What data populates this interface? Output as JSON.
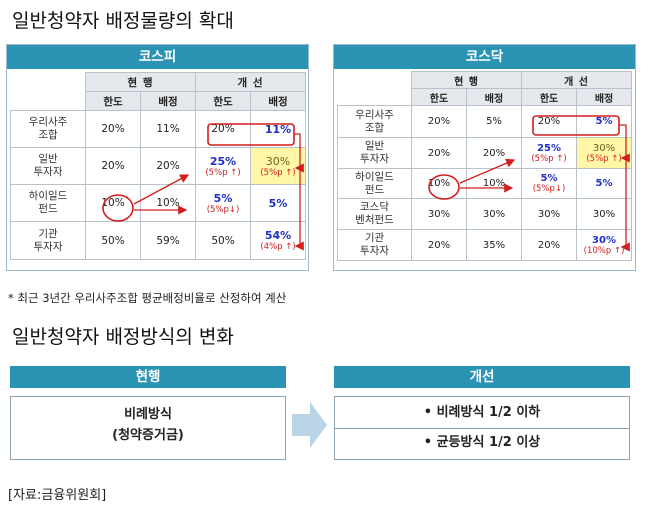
{
  "titles": {
    "expansion": "일반청약자 배정물량의 확대",
    "method": "일반청약자 배정방식의 변화"
  },
  "kospi": {
    "name": "코스피",
    "group_current": "현 행",
    "group_improved": "개 선",
    "col_limit": "한도",
    "col_alloc": "배정",
    "rows": [
      {
        "label_1": "우리사주",
        "label_2": "조합",
        "cur_limit": "20%",
        "cur_alloc": "11%",
        "new_limit": "20%",
        "new_alloc": "11%",
        "new_alloc_note": ""
      },
      {
        "label_1": "일반",
        "label_2": "투자자",
        "cur_limit": "20%",
        "cur_alloc": "20%",
        "new_limit": "25%",
        "new_limit_note": "(5%p ↑)",
        "new_alloc": "30%",
        "new_alloc_note": "(5%p ↑)"
      },
      {
        "label_1": "하이일드",
        "label_2": "펀드",
        "cur_limit": "10%",
        "cur_alloc": "10%",
        "new_limit": "5%",
        "new_limit_note": "(5%p↓)",
        "new_alloc": "5%",
        "new_alloc_note": ""
      },
      {
        "label_1": "기관",
        "label_2": "투자자",
        "cur_limit": "50%",
        "cur_alloc": "59%",
        "new_limit": "50%",
        "new_alloc": "54%",
        "new_alloc_note": "(4%p ↑)"
      }
    ]
  },
  "kosdaq": {
    "name": "코스닥",
    "group_current": "현 행",
    "group_improved": "개 선",
    "col_limit": "한도",
    "col_alloc": "배정",
    "rows": [
      {
        "label_1": "우리사주",
        "label_2": "조합",
        "cur_limit": "20%",
        "cur_alloc": "5%",
        "new_limit": "20%",
        "new_alloc": "5%",
        "new_alloc_note": ""
      },
      {
        "label_1": "일반",
        "label_2": "투자자",
        "cur_limit": "20%",
        "cur_alloc": "20%",
        "new_limit": "25%",
        "new_limit_note": "(5%p ↑)",
        "new_alloc": "30%",
        "new_alloc_note": "(5%p ↑)"
      },
      {
        "label_1": "하이일드",
        "label_2": "펀드",
        "cur_limit": "10%",
        "cur_alloc": "10%",
        "new_limit": "5%",
        "new_limit_note": "(5%p↓)",
        "new_alloc": "5%",
        "new_alloc_note": ""
      },
      {
        "label_1": "코스닥",
        "label_2": "벤처펀드",
        "cur_limit": "30%",
        "cur_alloc": "30%",
        "new_limit": "30%",
        "new_alloc": "30%",
        "new_alloc_note": ""
      },
      {
        "label_1": "기관",
        "label_2": "투자자",
        "cur_limit": "20%",
        "cur_alloc": "35%",
        "new_limit": "20%",
        "new_alloc": "30%",
        "new_alloc_note": "(10%p ↑)"
      }
    ]
  },
  "footnote": "* 최근 3년간 우리사주조합 평균배정비율로 산정하여 계산",
  "method": {
    "current_label": "현행",
    "current_line_1": "비례방식",
    "current_line_2": "(청약증거금)",
    "improved_label": "개선",
    "improved_item_1": "•  비례방식 1/2 이하",
    "improved_item_2": "•  균등방식 1/2 이상"
  },
  "source": "[자료:금융위원회]",
  "colors": {
    "accent": "#2b93b3",
    "highlight": "#fff6a6",
    "red": "#d21e1e",
    "blue": "#1f2fcc"
  }
}
